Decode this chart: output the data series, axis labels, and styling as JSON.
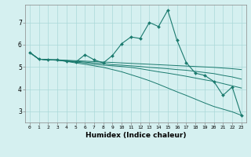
{
  "xlabel": "Humidex (Indice chaleur)",
  "ylabel": "",
  "bg_color": "#d5f0f0",
  "grid_color": "#aad8d8",
  "line_color": "#1a7a6e",
  "xlim": [
    -0.5,
    23.5
  ],
  "ylim": [
    2.5,
    7.8
  ],
  "xticks": [
    0,
    1,
    2,
    3,
    4,
    5,
    6,
    7,
    8,
    9,
    10,
    11,
    12,
    13,
    14,
    15,
    16,
    17,
    18,
    19,
    20,
    21,
    22,
    23
  ],
  "yticks": [
    3,
    4,
    5,
    6,
    7
  ],
  "lines": [
    {
      "x": [
        0,
        1,
        2,
        3,
        4,
        5,
        6,
        7,
        8,
        9,
        10,
        11,
        12,
        13,
        14,
        15,
        16,
        17,
        18,
        19,
        20,
        21,
        22,
        23
      ],
      "y": [
        5.65,
        5.35,
        5.32,
        5.32,
        5.25,
        5.22,
        5.55,
        5.32,
        5.18,
        5.52,
        6.05,
        6.35,
        6.28,
        7.0,
        6.82,
        7.55,
        6.2,
        5.2,
        4.72,
        4.62,
        4.35,
        3.72,
        4.1,
        2.82
      ],
      "has_markers": true
    },
    {
      "x": [
        0,
        1,
        2,
        3,
        4,
        5,
        6,
        7,
        8,
        9,
        10,
        11,
        12,
        13,
        14,
        15,
        16,
        17,
        18,
        19,
        20,
        21,
        22,
        23
      ],
      "y": [
        5.65,
        5.35,
        5.32,
        5.32,
        5.3,
        5.28,
        5.26,
        5.24,
        5.22,
        5.2,
        5.18,
        5.16,
        5.14,
        5.12,
        5.1,
        5.08,
        5.06,
        5.04,
        5.02,
        5.0,
        4.98,
        4.95,
        4.92,
        4.88
      ],
      "has_markers": false
    },
    {
      "x": [
        0,
        1,
        2,
        3,
        4,
        5,
        6,
        7,
        8,
        9,
        10,
        11,
        12,
        13,
        14,
        15,
        16,
        17,
        18,
        19,
        20,
        21,
        22,
        23
      ],
      "y": [
        5.65,
        5.35,
        5.32,
        5.32,
        5.28,
        5.25,
        5.22,
        5.18,
        5.15,
        5.1,
        5.08,
        5.05,
        5.02,
        4.98,
        4.95,
        4.92,
        4.88,
        4.85,
        4.8,
        4.75,
        4.7,
        4.62,
        4.55,
        4.45
      ],
      "has_markers": false
    },
    {
      "x": [
        0,
        1,
        2,
        3,
        4,
        5,
        6,
        7,
        8,
        9,
        10,
        11,
        12,
        13,
        14,
        15,
        16,
        17,
        18,
        19,
        20,
        21,
        22,
        23
      ],
      "y": [
        5.65,
        5.35,
        5.32,
        5.3,
        5.27,
        5.22,
        5.18,
        5.12,
        5.08,
        5.05,
        5.02,
        4.98,
        4.92,
        4.85,
        4.78,
        4.72,
        4.65,
        4.58,
        4.5,
        4.42,
        4.35,
        4.25,
        4.15,
        4.05
      ],
      "has_markers": false
    },
    {
      "x": [
        0,
        1,
        2,
        3,
        4,
        5,
        6,
        7,
        8,
        9,
        10,
        11,
        12,
        13,
        14,
        15,
        16,
        17,
        18,
        19,
        20,
        21,
        22,
        23
      ],
      "y": [
        5.65,
        5.35,
        5.32,
        5.3,
        5.25,
        5.18,
        5.12,
        5.05,
        4.98,
        4.88,
        4.78,
        4.65,
        4.52,
        4.38,
        4.22,
        4.05,
        3.88,
        3.72,
        3.55,
        3.38,
        3.22,
        3.1,
        2.98,
        2.82
      ],
      "has_markers": false
    }
  ]
}
